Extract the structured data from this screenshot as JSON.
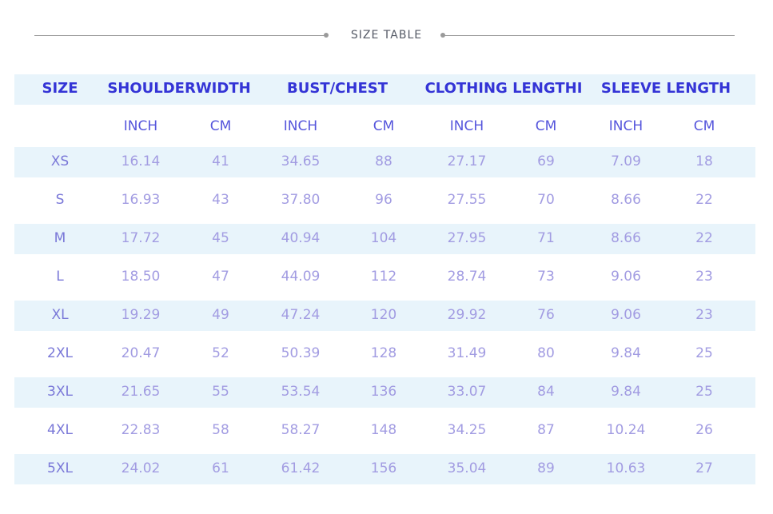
{
  "title": "SIZE TABLE",
  "table": {
    "headers": [
      "SIZE",
      "SHOULDERWIDTH",
      "BUST/CHEST",
      "CLOTHING LENGTHI",
      "SLEEVE LENGTH"
    ],
    "subheaders": [
      "INCH",
      "CM",
      "INCH",
      "CM",
      "INCH",
      "CM",
      "INCH",
      "CM"
    ],
    "rows": [
      [
        "XS",
        "16.14",
        "41",
        "34.65",
        "88",
        "27.17",
        "69",
        "7.09",
        "18"
      ],
      [
        "S",
        "16.93",
        "43",
        "37.80",
        "96",
        "27.55",
        "70",
        "8.66",
        "22"
      ],
      [
        "M",
        "17.72",
        "45",
        "40.94",
        "104",
        "27.95",
        "71",
        "8.66",
        "22"
      ],
      [
        "L",
        "18.50",
        "47",
        "44.09",
        "112",
        "28.74",
        "73",
        "9.06",
        "23"
      ],
      [
        "XL",
        "19.29",
        "49",
        "47.24",
        "120",
        "29.92",
        "76",
        "9.06",
        "23"
      ],
      [
        "2XL",
        "20.47",
        "52",
        "50.39",
        "128",
        "31.49",
        "80",
        "9.84",
        "25"
      ],
      [
        "3XL",
        "21.65",
        "55",
        "53.54",
        "136",
        "33.07",
        "84",
        "9.84",
        "25"
      ],
      [
        "4XL",
        "22.83",
        "58",
        "58.27",
        "148",
        "34.25",
        "87",
        "10.24",
        "26"
      ],
      [
        "5XL",
        "24.02",
        "61",
        "61.42",
        "156",
        "35.04",
        "89",
        "10.63",
        "27"
      ]
    ]
  }
}
